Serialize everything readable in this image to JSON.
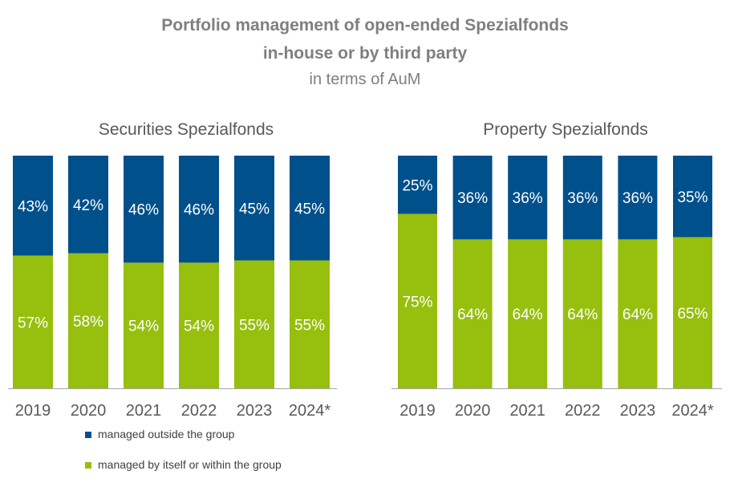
{
  "title": {
    "line1": "Portfolio management of open-ended Spezialfonds",
    "line2": "in-house or by third party",
    "line3": "in terms of AuM"
  },
  "colors": {
    "outside": "#00508c",
    "within": "#97bf0d"
  },
  "legend": {
    "outside": "managed outside the group",
    "within": "managed by itself or within the group"
  },
  "chart_data": [
    {
      "type": "bar",
      "stacked": true,
      "title": "Securities Spezialfonds",
      "categories": [
        "2019",
        "2020",
        "2021",
        "2022",
        "2023",
        "2024*"
      ],
      "ylim": [
        0,
        100
      ],
      "series": [
        {
          "name": "managed by itself or within the group",
          "values": [
            57,
            58,
            54,
            54,
            55,
            55
          ]
        },
        {
          "name": "managed outside the group",
          "values": [
            43,
            42,
            46,
            46,
            45,
            45
          ]
        }
      ]
    },
    {
      "type": "bar",
      "stacked": true,
      "title": "Property Spezialfonds",
      "categories": [
        "2019",
        "2020",
        "2021",
        "2022",
        "2023",
        "2024*"
      ],
      "ylim": [
        0,
        100
      ],
      "series": [
        {
          "name": "managed by itself or within the group",
          "values": [
            75,
            64,
            64,
            64,
            64,
            65
          ]
        },
        {
          "name": "managed outside the group",
          "values": [
            25,
            36,
            36,
            36,
            36,
            35
          ]
        }
      ]
    }
  ]
}
